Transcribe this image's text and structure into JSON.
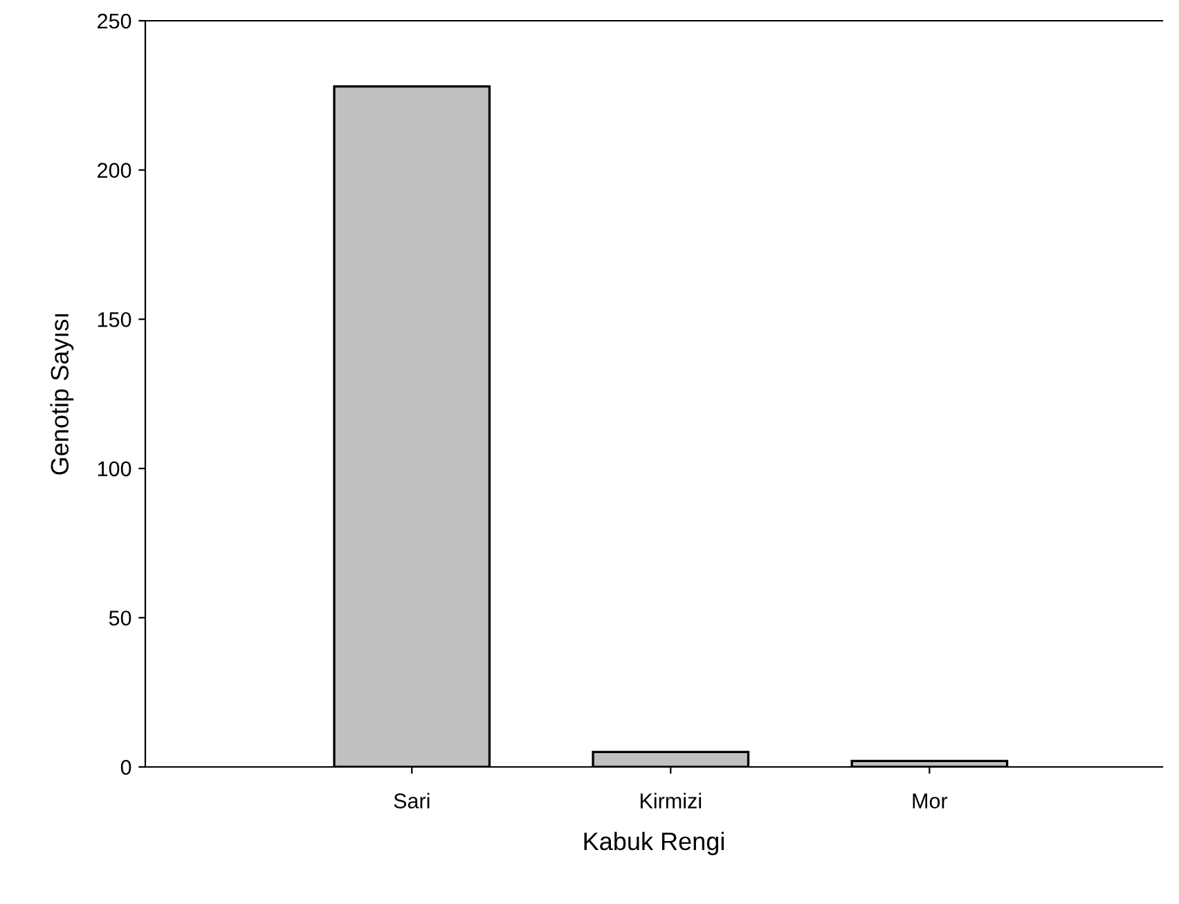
{
  "chart_data": {
    "type": "bar",
    "xlabel": "Kabuk Rengi",
    "ylabel": "Genotip Sayısı",
    "categories": [
      "Sari",
      "Kirmizi",
      "Mor"
    ],
    "values": [
      228,
      5,
      2
    ],
    "color": "#c0c0c0",
    "ylim": [
      0,
      250
    ],
    "yticks": [
      0,
      50,
      100,
      150,
      200,
      250
    ],
    "grid": false
  }
}
